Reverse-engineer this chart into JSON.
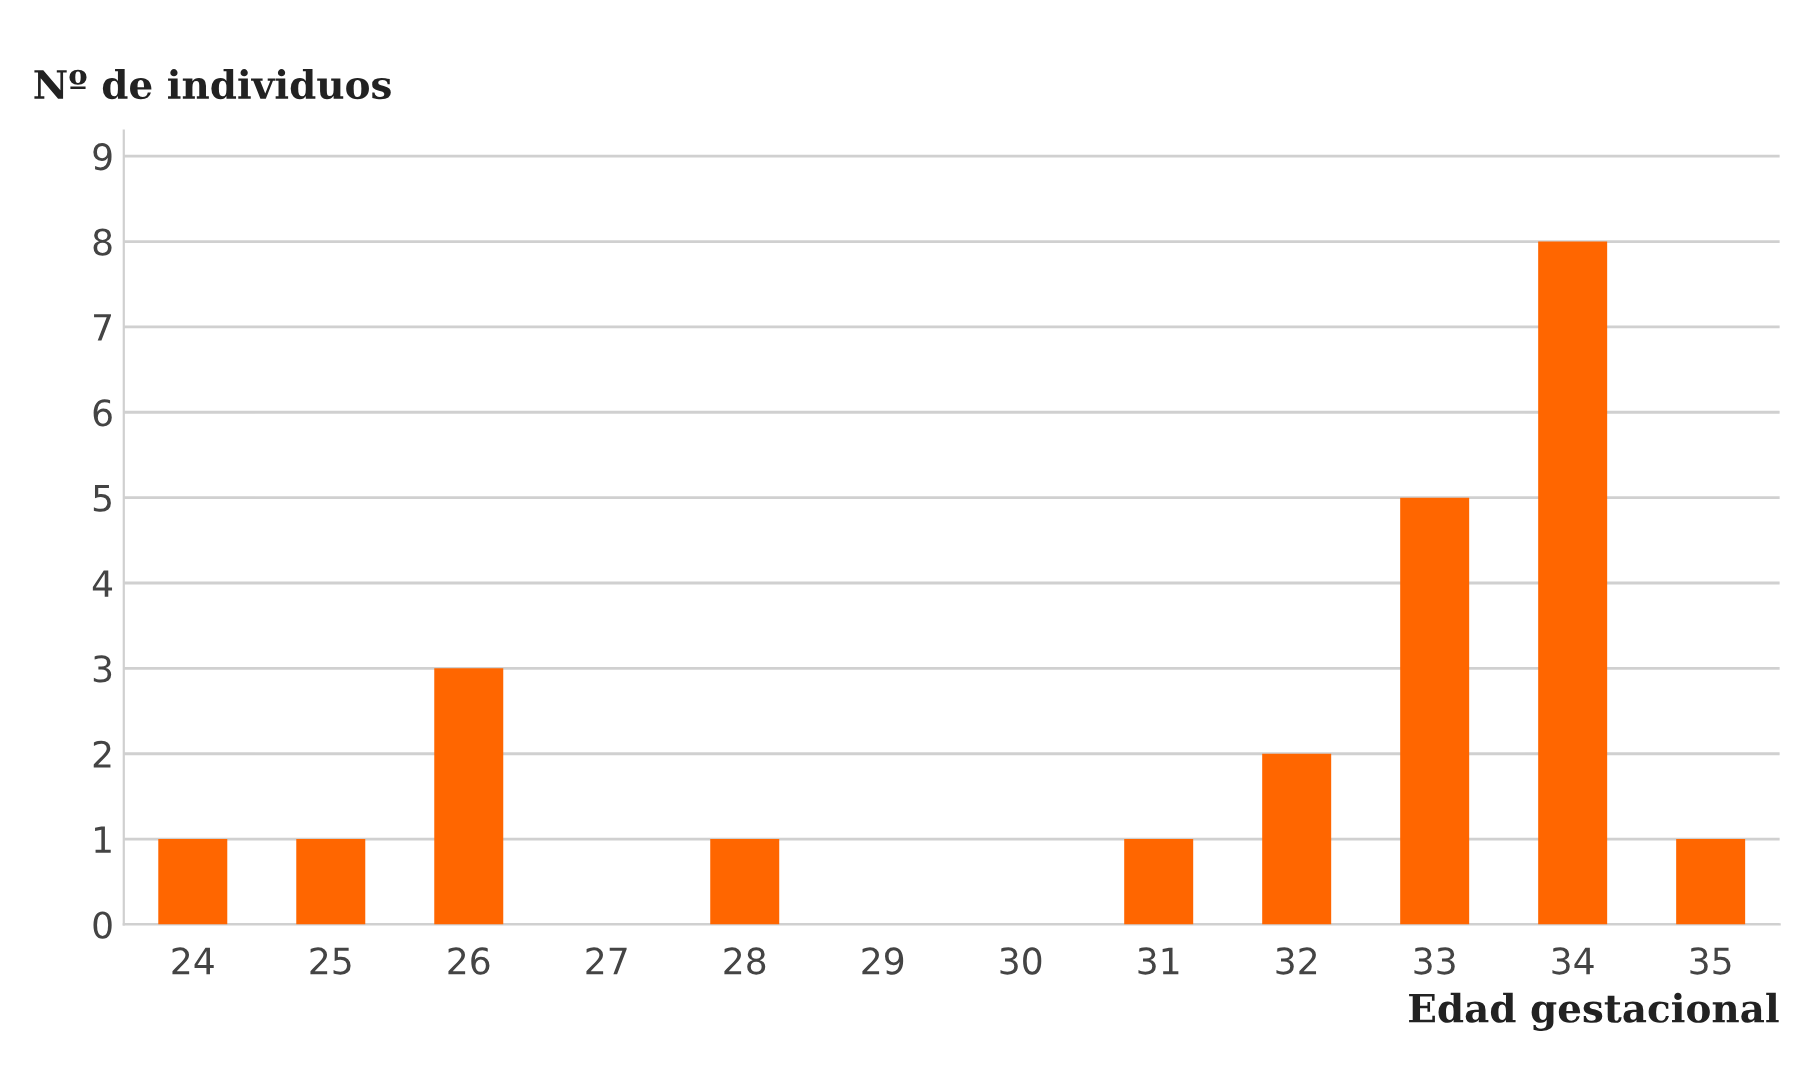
{
  "chart_data": {
    "type": "bar",
    "categories": [
      "24",
      "25",
      "26",
      "27",
      "28",
      "29",
      "30",
      "31",
      "32",
      "33",
      "34",
      "35"
    ],
    "values": [
      1,
      1,
      3,
      0,
      1,
      0,
      0,
      1,
      2,
      5,
      8,
      1
    ],
    "color": "#ff6600",
    "ylabel": "Nº de individuos",
    "xlabel": "Edad gestacional",
    "ylim": [
      0,
      9.3
    ],
    "yticks": [
      0,
      1,
      2,
      3,
      4,
      5,
      6,
      7,
      8,
      9
    ],
    "grid": "y"
  }
}
